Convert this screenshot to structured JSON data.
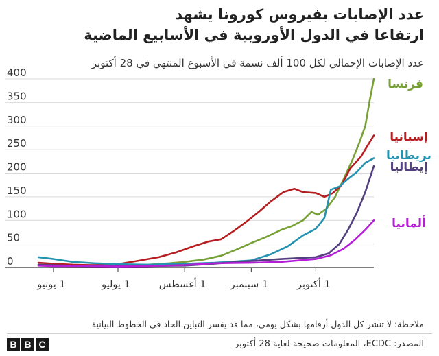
{
  "title": {
    "line1": "عدد الإصابات بفيروس كورونا يشهد",
    "line2": "ارتفاعا في الدول الأوروبية في الأسابيع الماضية"
  },
  "subtitle": "عدد الإصابات الإجمالي لكل 100 ألف نسمة في الأسبوع المنتهي في 28 أكتوبر",
  "note": "ملاحظة: لا تنشر كل الدول أرقامها بشكل يومي، مما قد يفسر التباين الحاد في الخطوط البيانية",
  "source": "المصدر: ECDC، المعلومات صحيحة لغاية 28 أكتوبر",
  "logo": [
    "B",
    "B",
    "C"
  ],
  "chart_data": {
    "type": "line",
    "x_unit": "date",
    "ylim": [
      0,
      400
    ],
    "yticks": [
      0,
      50,
      100,
      150,
      200,
      250,
      300,
      350,
      400
    ],
    "xlim": [
      "2020-05-25",
      "2020-10-28"
    ],
    "xticks": [
      {
        "date": "2020-06-01",
        "label": "1 يونيو"
      },
      {
        "date": "2020-07-01",
        "label": "1 يوليو"
      },
      {
        "date": "2020-08-01",
        "label": "1 أغسطس"
      },
      {
        "date": "2020-09-01",
        "label": "1 سبتمبر"
      },
      {
        "date": "2020-10-01",
        "label": "1 أكتوبر"
      }
    ],
    "grid": true,
    "series": [
      {
        "name": "فرنسا",
        "color": "#77a136",
        "points": [
          [
            "2020-05-25",
            5
          ],
          [
            "2020-06-01",
            4
          ],
          [
            "2020-06-10",
            3
          ],
          [
            "2020-06-20",
            3
          ],
          [
            "2020-07-01",
            4
          ],
          [
            "2020-07-15",
            6
          ],
          [
            "2020-07-25",
            9
          ],
          [
            "2020-08-01",
            12
          ],
          [
            "2020-08-10",
            17
          ],
          [
            "2020-08-18",
            25
          ],
          [
            "2020-08-25",
            38
          ],
          [
            "2020-09-01",
            52
          ],
          [
            "2020-09-08",
            65
          ],
          [
            "2020-09-15",
            80
          ],
          [
            "2020-09-20",
            88
          ],
          [
            "2020-09-25",
            100
          ],
          [
            "2020-09-29",
            118
          ],
          [
            "2020-10-02",
            112
          ],
          [
            "2020-10-06",
            125
          ],
          [
            "2020-10-10",
            150
          ],
          [
            "2020-10-14",
            188
          ],
          [
            "2020-10-18",
            228
          ],
          [
            "2020-10-21",
            262
          ],
          [
            "2020-10-24",
            300
          ],
          [
            "2020-10-26",
            352
          ],
          [
            "2020-10-28",
            400
          ]
        ]
      },
      {
        "name": "إسبانيا",
        "color": "#b51e20",
        "points": [
          [
            "2020-05-25",
            10
          ],
          [
            "2020-06-01",
            8
          ],
          [
            "2020-06-10",
            6
          ],
          [
            "2020-06-20",
            5
          ],
          [
            "2020-07-01",
            7
          ],
          [
            "2020-07-10",
            14
          ],
          [
            "2020-07-20",
            22
          ],
          [
            "2020-07-28",
            32
          ],
          [
            "2020-08-05",
            45
          ],
          [
            "2020-08-12",
            55
          ],
          [
            "2020-08-18",
            60
          ],
          [
            "2020-08-24",
            78
          ],
          [
            "2020-08-30",
            98
          ],
          [
            "2020-09-05",
            120
          ],
          [
            "2020-09-10",
            140
          ],
          [
            "2020-09-16",
            160
          ],
          [
            "2020-09-21",
            167
          ],
          [
            "2020-09-25",
            160
          ],
          [
            "2020-10-01",
            158
          ],
          [
            "2020-10-05",
            150
          ],
          [
            "2020-10-09",
            158
          ],
          [
            "2020-10-13",
            175
          ],
          [
            "2020-10-17",
            210
          ],
          [
            "2020-10-22",
            235
          ],
          [
            "2020-10-25",
            258
          ],
          [
            "2020-10-28",
            280
          ]
        ]
      },
      {
        "name": "بريطانيا",
        "color": "#2493b0",
        "points": [
          [
            "2020-05-25",
            22
          ],
          [
            "2020-06-01",
            18
          ],
          [
            "2020-06-10",
            12
          ],
          [
            "2020-06-20",
            9
          ],
          [
            "2020-07-01",
            7
          ],
          [
            "2020-07-15",
            6
          ],
          [
            "2020-08-01",
            8
          ],
          [
            "2020-08-15",
            10
          ],
          [
            "2020-09-01",
            15
          ],
          [
            "2020-09-10",
            28
          ],
          [
            "2020-09-18",
            45
          ],
          [
            "2020-09-25",
            68
          ],
          [
            "2020-10-01",
            82
          ],
          [
            "2020-10-05",
            105
          ],
          [
            "2020-10-08",
            165
          ],
          [
            "2020-10-12",
            172
          ],
          [
            "2020-10-16",
            188
          ],
          [
            "2020-10-20",
            202
          ],
          [
            "2020-10-24",
            222
          ],
          [
            "2020-10-28",
            232
          ]
        ]
      },
      {
        "name": "إيطاليا",
        "color": "#54407f",
        "points": [
          [
            "2020-05-25",
            6
          ],
          [
            "2020-06-01",
            5
          ],
          [
            "2020-06-15",
            3
          ],
          [
            "2020-07-01",
            3
          ],
          [
            "2020-07-15",
            3
          ],
          [
            "2020-08-01",
            4
          ],
          [
            "2020-08-15",
            8
          ],
          [
            "2020-09-01",
            14
          ],
          [
            "2020-09-15",
            18
          ],
          [
            "2020-10-01",
            22
          ],
          [
            "2020-10-07",
            30
          ],
          [
            "2020-10-12",
            50
          ],
          [
            "2020-10-16",
            80
          ],
          [
            "2020-10-20",
            115
          ],
          [
            "2020-10-24",
            160
          ],
          [
            "2020-10-28",
            215
          ]
        ]
      },
      {
        "name": "ألمانيا",
        "color": "#b41ed6",
        "points": [
          [
            "2020-05-25",
            4
          ],
          [
            "2020-06-01",
            3
          ],
          [
            "2020-06-15",
            3
          ],
          [
            "2020-07-01",
            2
          ],
          [
            "2020-07-15",
            3
          ],
          [
            "2020-08-01",
            5
          ],
          [
            "2020-08-15",
            9
          ],
          [
            "2020-09-01",
            10
          ],
          [
            "2020-09-15",
            12
          ],
          [
            "2020-10-01",
            18
          ],
          [
            "2020-10-08",
            26
          ],
          [
            "2020-10-14",
            40
          ],
          [
            "2020-10-19",
            58
          ],
          [
            "2020-10-24",
            80
          ],
          [
            "2020-10-28",
            100
          ]
        ]
      }
    ]
  }
}
